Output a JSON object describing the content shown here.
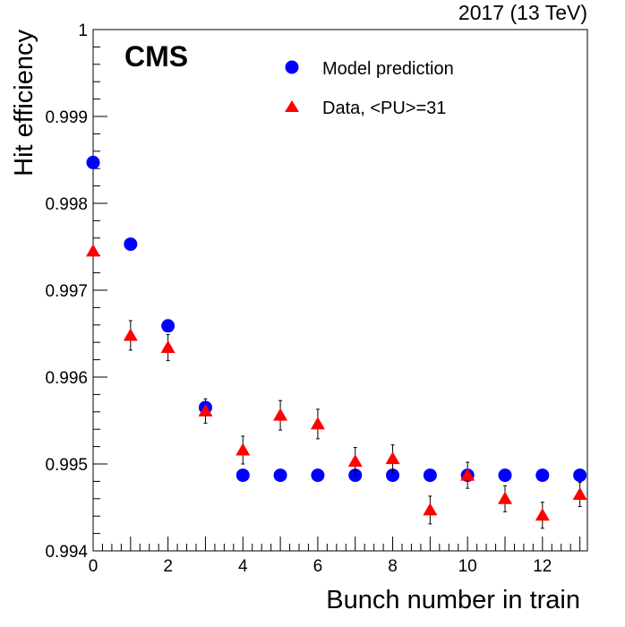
{
  "chart_data": {
    "type": "scatter",
    "title": "",
    "experiment_label": "CMS",
    "top_right_label": "2017 (13 TeV)",
    "xlabel": "Bunch number in train",
    "ylabel": "Hit efficiency",
    "xlim": [
      0,
      13.2
    ],
    "ylim": [
      0.994,
      1.0
    ],
    "x_ticks": [
      0,
      2,
      4,
      6,
      8,
      10,
      12
    ],
    "y_ticks": [
      0.994,
      0.995,
      0.996,
      0.997,
      0.998,
      0.999,
      1
    ],
    "y_tick_labels": [
      "0.994",
      "0.995",
      "0.996",
      "0.997",
      "0.998",
      "0.999",
      "1"
    ],
    "grid": false,
    "legend_position": "top-center",
    "series": [
      {
        "name": "Model prediction",
        "marker": "circle",
        "color": "#0000ff",
        "x": [
          0,
          1,
          2,
          3,
          4,
          5,
          6,
          7,
          8,
          9,
          10,
          11,
          12,
          13
        ],
        "y": [
          0.99847,
          0.99753,
          0.99659,
          0.99565,
          0.99487,
          0.99487,
          0.99487,
          0.99487,
          0.99487,
          0.99487,
          0.99487,
          0.99487,
          0.99487,
          0.99487
        ]
      },
      {
        "name": "Data, <PU>=31",
        "marker": "triangle",
        "color": "#ff0000",
        "x": [
          0,
          1,
          2,
          3,
          4,
          5,
          6,
          7,
          8,
          9,
          10,
          11,
          12,
          13
        ],
        "y": [
          0.99745,
          0.99648,
          0.99634,
          0.99561,
          0.99516,
          0.99556,
          0.99546,
          0.99503,
          0.99506,
          0.99447,
          0.99487,
          0.9946,
          0.99441,
          0.99465
        ],
        "yerr": [
          4e-05,
          0.00017,
          0.00015,
          0.00014,
          0.00016,
          0.00017,
          0.00017,
          0.00016,
          0.00016,
          0.00016,
          0.00015,
          0.00015,
          0.00015,
          0.00014
        ]
      }
    ]
  }
}
